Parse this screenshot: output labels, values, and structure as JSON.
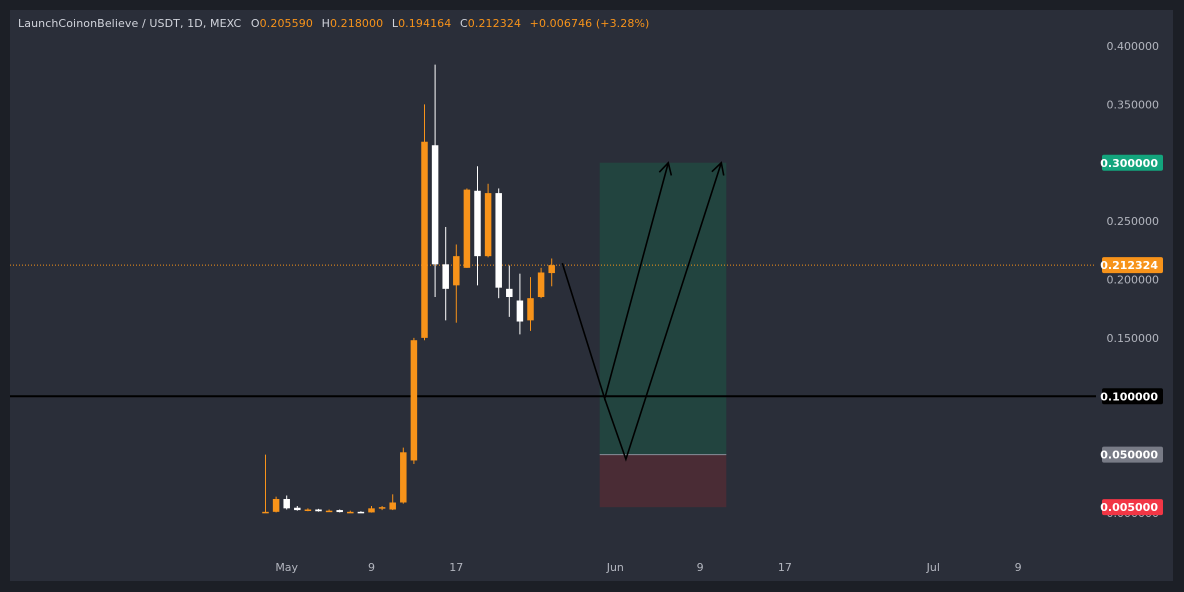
{
  "legend": {
    "symbol": "LaunchCoinonBelieve / USDT, 1D, MEXC",
    "open_key": "O",
    "open": "0.205590",
    "high_key": "H",
    "high": "0.218000",
    "low_key": "L",
    "low": "0.194164",
    "close_key": "C",
    "close": "0.212324",
    "change": "+0.006746 (+3.28%)"
  },
  "colors": {
    "background": "#2a2e39",
    "up": "#f7931a",
    "down": "#ffffff",
    "target_zone": "#22443f",
    "stop_zone": "#4a2c35",
    "target_tag": "#13a57d",
    "price_tag": "#f7931a",
    "entry_tag": "#787b86",
    "stop_tag": "#f23645",
    "level_tag": "#000000"
  },
  "chart_data": {
    "type": "candlestick",
    "y_axis": {
      "min": 0,
      "max": 0.4,
      "scale": "linear",
      "tick_labels": [
        "0.400000",
        "0.350000",
        "0.300000",
        "0.250000",
        "0.200000",
        "0.150000",
        "0.100000",
        "0.050000",
        "0.000000"
      ],
      "tick_values": [
        0.4,
        0.35,
        0.3,
        0.25,
        0.2,
        0.15,
        0.1,
        0.05,
        0.0
      ]
    },
    "x_axis": {
      "tick_labels": [
        "May",
        "9",
        "17",
        "Jun",
        "9",
        "17",
        "Jul",
        "9"
      ],
      "tick_dates": [
        "2025-05-01",
        "2025-05-09",
        "2025-05-17",
        "2025-06-01",
        "2025-06-09",
        "2025-06-17",
        "2025-07-01",
        "2025-07-09"
      ]
    },
    "candles": [
      {
        "date": "2025-04-29",
        "o": 0.0005,
        "h": 0.05,
        "l": 0.0003,
        "c": 0.001
      },
      {
        "date": "2025-04-30",
        "o": 0.001,
        "h": 0.014,
        "l": 0.0005,
        "c": 0.012
      },
      {
        "date": "2025-05-01",
        "o": 0.012,
        "h": 0.015,
        "l": 0.003,
        "c": 0.004
      },
      {
        "date": "2025-05-02",
        "o": 0.0045,
        "h": 0.006,
        "l": 0.002,
        "c": 0.0025
      },
      {
        "date": "2025-05-03",
        "o": 0.0025,
        "h": 0.004,
        "l": 0.0015,
        "c": 0.003
      },
      {
        "date": "2025-05-04",
        "o": 0.003,
        "h": 0.0035,
        "l": 0.0012,
        "c": 0.0015
      },
      {
        "date": "2025-05-05",
        "o": 0.0015,
        "h": 0.003,
        "l": 0.001,
        "c": 0.002
      },
      {
        "date": "2025-05-06",
        "o": 0.0025,
        "h": 0.003,
        "l": 0.0005,
        "c": 0.0008
      },
      {
        "date": "2025-05-07",
        "o": 0.0008,
        "h": 0.002,
        "l": 0.0004,
        "c": 0.001
      },
      {
        "date": "2025-05-08",
        "o": 0.001,
        "h": 0.0015,
        "l": 0.0003,
        "c": 0.0005
      },
      {
        "date": "2025-05-09",
        "o": 0.0005,
        "h": 0.006,
        "l": 0.0003,
        "c": 0.004
      },
      {
        "date": "2025-05-10",
        "o": 0.004,
        "h": 0.006,
        "l": 0.0025,
        "c": 0.005
      },
      {
        "date": "2025-05-11",
        "o": 0.003,
        "h": 0.016,
        "l": 0.0025,
        "c": 0.009
      },
      {
        "date": "2025-05-12",
        "o": 0.009,
        "h": 0.056,
        "l": 0.008,
        "c": 0.052
      },
      {
        "date": "2025-05-13",
        "o": 0.045,
        "h": 0.15,
        "l": 0.042,
        "c": 0.148
      },
      {
        "date": "2025-05-14",
        "o": 0.15,
        "h": 0.35,
        "l": 0.148,
        "c": 0.318
      },
      {
        "date": "2025-05-15",
        "o": 0.315,
        "h": 0.384,
        "l": 0.185,
        "c": 0.213
      },
      {
        "date": "2025-05-16",
        "o": 0.213,
        "h": 0.245,
        "l": 0.165,
        "c": 0.192
      },
      {
        "date": "2025-05-17",
        "o": 0.195,
        "h": 0.23,
        "l": 0.163,
        "c": 0.22
      },
      {
        "date": "2025-05-18",
        "o": 0.21,
        "h": 0.278,
        "l": 0.21,
        "c": 0.277
      },
      {
        "date": "2025-05-19",
        "o": 0.276,
        "h": 0.297,
        "l": 0.195,
        "c": 0.22
      },
      {
        "date": "2025-05-20",
        "o": 0.22,
        "h": 0.282,
        "l": 0.219,
        "c": 0.274
      },
      {
        "date": "2025-05-21",
        "o": 0.274,
        "h": 0.278,
        "l": 0.184,
        "c": 0.193
      },
      {
        "date": "2025-05-22",
        "o": 0.192,
        "h": 0.212,
        "l": 0.168,
        "c": 0.185
      },
      {
        "date": "2025-05-23",
        "o": 0.182,
        "h": 0.205,
        "l": 0.153,
        "c": 0.164
      },
      {
        "date": "2025-05-24",
        "o": 0.165,
        "h": 0.202,
        "l": 0.156,
        "c": 0.184
      },
      {
        "date": "2025-05-25",
        "o": 0.185,
        "h": 0.21,
        "l": 0.184,
        "c": 0.206
      },
      {
        "date": "2025-05-26",
        "o": 0.2055,
        "h": 0.218,
        "l": 0.1942,
        "c": 0.2123
      }
    ],
    "position": {
      "entry": 0.05,
      "target": 0.3,
      "stop": 0.005,
      "start_date": "2025-05-31",
      "end_date": "2025-06-11"
    },
    "horizontal_levels": [
      {
        "value": 0.1,
        "label": "0.100000"
      }
    ],
    "current_price": {
      "value": 0.212324,
      "label": "0.212324"
    },
    "projected_paths": [
      {
        "points": [
          {
            "date": "2025-05-27",
            "y": 0.214
          },
          {
            "date": "2025-05-31",
            "y": 0.098
          },
          {
            "date": "2025-06-06",
            "y": 0.3
          }
        ]
      },
      {
        "points": [
          {
            "date": "2025-05-31",
            "y": 0.098
          },
          {
            "date": "2025-06-02",
            "y": 0.046
          },
          {
            "date": "2025-06-11",
            "y": 0.3
          }
        ]
      }
    ],
    "price_tags": [
      {
        "value": 0.3,
        "label": "0.300000",
        "kind": "target"
      },
      {
        "value": 0.212324,
        "label": "0.212324",
        "kind": "price"
      },
      {
        "value": 0.1,
        "label": "0.100000",
        "kind": "level"
      },
      {
        "value": 0.05,
        "label": "0.050000",
        "kind": "entry"
      },
      {
        "value": 0.005,
        "label": "0.005000",
        "kind": "stop"
      }
    ]
  }
}
